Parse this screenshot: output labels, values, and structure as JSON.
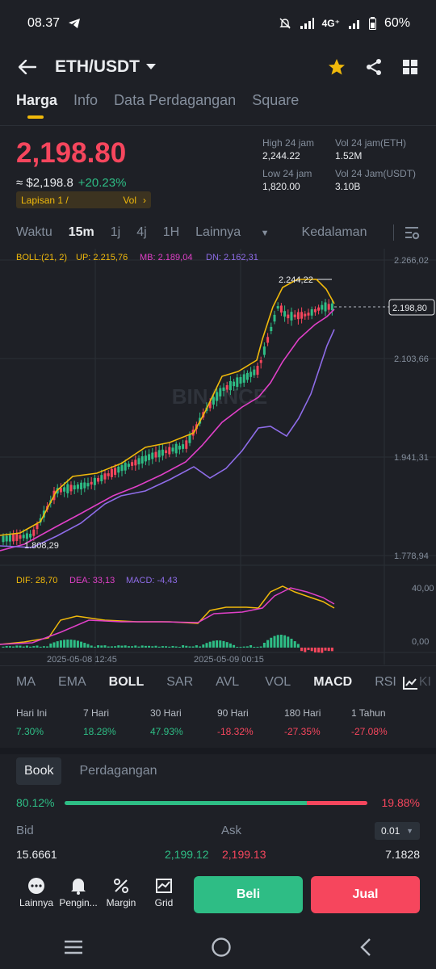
{
  "status": {
    "time": "08.37",
    "network": "4G⁺",
    "battery": "60%"
  },
  "header": {
    "pair": "ETH/USDT"
  },
  "tabs": [
    "Harga",
    "Info",
    "Data Perdagangan",
    "Square"
  ],
  "price": {
    "last": "2,198.80",
    "approx": "≈ $2,198.8",
    "change": "+20.23%",
    "layer": "Lapisan 1 /",
    "vol_tag": "Vol"
  },
  "stats": {
    "high_label": "High 24 jam",
    "high": "2,244.22",
    "vol_eth_label": "Vol 24 jam(ETH)",
    "vol_eth": "1.52M",
    "low_label": "Low 24 jam",
    "low": "1,820.00",
    "vol_usdt_label": "Vol 24 Jam(USDT)",
    "vol_usdt": "3.10B"
  },
  "timebar": [
    "Waktu",
    "15m",
    "1j",
    "4j",
    "1H",
    "Lainnya",
    "Kedalaman"
  ],
  "boll": {
    "label": "BOLL:(21, 2)",
    "up": "UP: 2.215,76",
    "mb": "MB: 2.189,04",
    "dn": "DN: 2.162,31"
  },
  "y_ticks": [
    "2.266,02",
    "2.103,66",
    "1.941,31",
    "1.778,94"
  ],
  "current_price_tag": "2.198,80",
  "high_mark": "2.244,22",
  "low_mark": "1.808,29",
  "watermark": "BINANCE",
  "macd": {
    "dif": "DIF: 28,70",
    "dea": "DEA: 33,13",
    "macd": "MACD: -4,43",
    "tick_top": "40,00",
    "tick_zero": "0,00"
  },
  "x_labels": [
    "2025-05-08 12:45",
    "2025-05-09 00:15"
  ],
  "indicators": [
    "MA",
    "EMA",
    "BOLL",
    "SAR",
    "AVL",
    "VOL",
    "MACD",
    "RSI",
    "KI"
  ],
  "performance": [
    {
      "label": "Hari Ini",
      "value": "7.30%",
      "dir": "pos"
    },
    {
      "label": "7 Hari",
      "value": "18.28%",
      "dir": "pos"
    },
    {
      "label": "30 Hari",
      "value": "47.93%",
      "dir": "pos"
    },
    {
      "label": "90 Hari",
      "value": "-18.32%",
      "dir": "neg"
    },
    {
      "label": "180 Hari",
      "value": "-27.35%",
      "dir": "neg"
    },
    {
      "label": "1 Tahun",
      "value": "-27.08%",
      "dir": "neg"
    }
  ],
  "book": {
    "tabs": [
      "Book",
      "Perdagangan"
    ],
    "buy_pct": "80.12%",
    "sell_pct": "19.88%",
    "buy_ratio": 0.8012,
    "bid_label": "Bid",
    "ask_label": "Ask",
    "precision": "0.01",
    "bid_qty": "15.6661",
    "bid_price": "2,199.12",
    "ask_price": "2,199.13",
    "ask_qty": "7.1828"
  },
  "actions": [
    "Lainnya",
    "Pengin...",
    "Margin",
    "Grid"
  ],
  "buy": "Beli",
  "sell": "Jual",
  "colors": {
    "up": "#2ebd85",
    "down": "#f6465d",
    "accent": "#f0b90b",
    "boll_up": "#f0b90b",
    "boll_mb": "#e040c8",
    "boll_dn": "#8e6ce8",
    "bg": "#1e2026"
  }
}
